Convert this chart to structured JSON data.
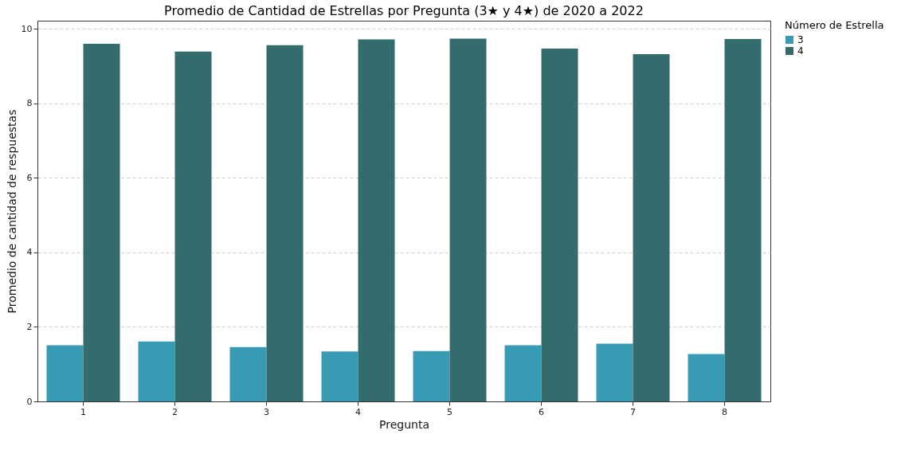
{
  "chart_data": {
    "type": "bar",
    "title": "Promedio de Cantidad de Estrellas por Pregunta (3★ y 4★) de 2020 a 2022",
    "xlabel": "Pregunta",
    "ylabel": "Promedio de cantidad de respuestas",
    "legend_title": "Número de Estrella",
    "categories": [
      "1",
      "2",
      "3",
      "4",
      "5",
      "6",
      "7",
      "8"
    ],
    "series": [
      {
        "name": "3",
        "color": "#379bb3",
        "values": [
          1.51,
          1.61,
          1.46,
          1.34,
          1.35,
          1.51,
          1.55,
          1.27
        ]
      },
      {
        "name": "4",
        "color": "#346b6c",
        "values": [
          9.6,
          9.39,
          9.56,
          9.72,
          9.74,
          9.47,
          9.32,
          9.73
        ]
      }
    ],
    "ylim": [
      0,
      10.22
    ],
    "yticks": [
      0,
      2,
      4,
      6,
      8,
      10
    ],
    "grid": "y",
    "legend": "right"
  }
}
